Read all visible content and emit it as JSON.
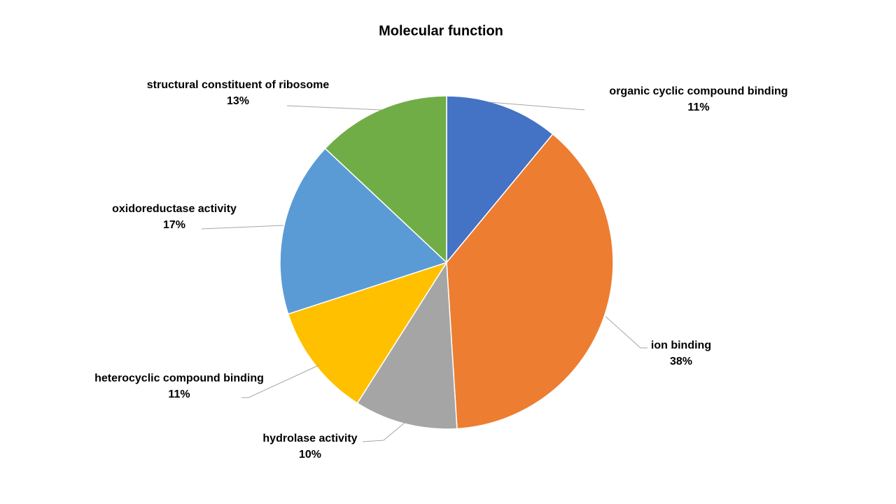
{
  "chart_data": {
    "type": "pie",
    "title": "Molecular function",
    "categories": [
      "organic cyclic compound binding",
      "ion binding",
      "hydrolase activity",
      "heterocyclic compound binding",
      "oxidoreductase activity",
      "structural constituent of ribosome"
    ],
    "values": [
      11,
      38,
      10,
      11,
      17,
      13
    ],
    "value_labels": [
      "11%",
      "38%",
      "10%",
      "11%",
      "17%",
      "13%"
    ],
    "colors": [
      "#4472c4",
      "#ed7d31",
      "#a5a5a5",
      "#ffc000",
      "#5b9bd5",
      "#70ad47"
    ]
  }
}
